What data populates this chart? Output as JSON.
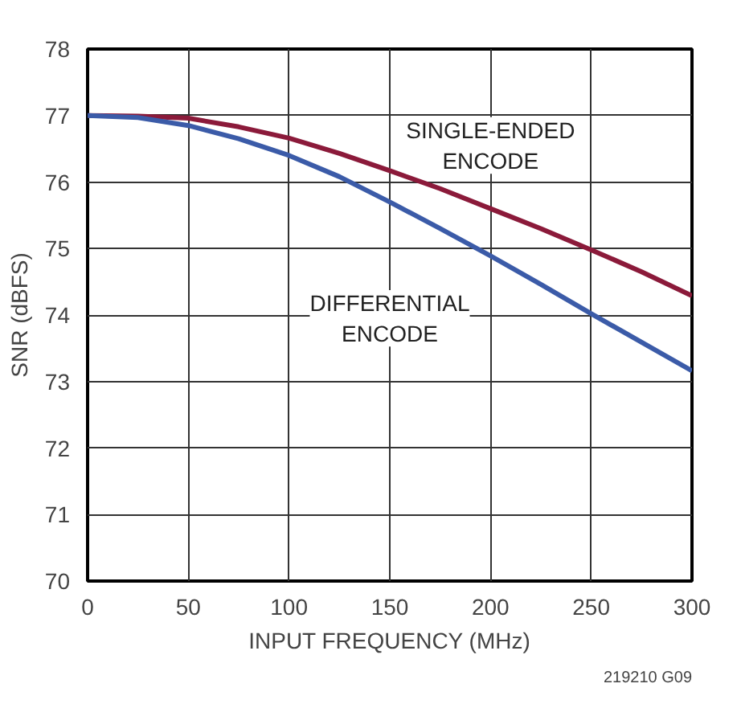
{
  "chart_data": {
    "type": "line",
    "xlabel": "INPUT FREQUENCY (MHz)",
    "ylabel": "SNR (dBFS)",
    "x": [
      0,
      25,
      50,
      75,
      100,
      125,
      150,
      175,
      200,
      225,
      250,
      275,
      300
    ],
    "series": [
      {
        "name": "SINGLE-ENDED\nENCODE",
        "color": "#8b1a3a",
        "values": [
          77.0,
          76.99,
          76.96,
          76.83,
          76.66,
          76.43,
          76.17,
          75.9,
          75.6,
          75.3,
          74.98,
          74.65,
          74.29
        ]
      },
      {
        "name": "DIFFERENTIAL\nENCODE",
        "color": "#3b5ba8",
        "values": [
          77.0,
          76.97,
          76.85,
          76.65,
          76.4,
          76.08,
          75.7,
          75.3,
          74.89,
          74.46,
          74.02,
          73.59,
          73.16
        ]
      }
    ],
    "xlim": [
      0,
      300
    ],
    "xticks": [
      0,
      50,
      100,
      150,
      200,
      250,
      300
    ],
    "ylim": [
      70,
      78
    ],
    "yticks": [
      70,
      71,
      72,
      73,
      74,
      75,
      76,
      77,
      78
    ],
    "grid": true,
    "legend": false,
    "marker": "none",
    "line_style": "solid",
    "annotations": [
      "219210 G09"
    ]
  }
}
